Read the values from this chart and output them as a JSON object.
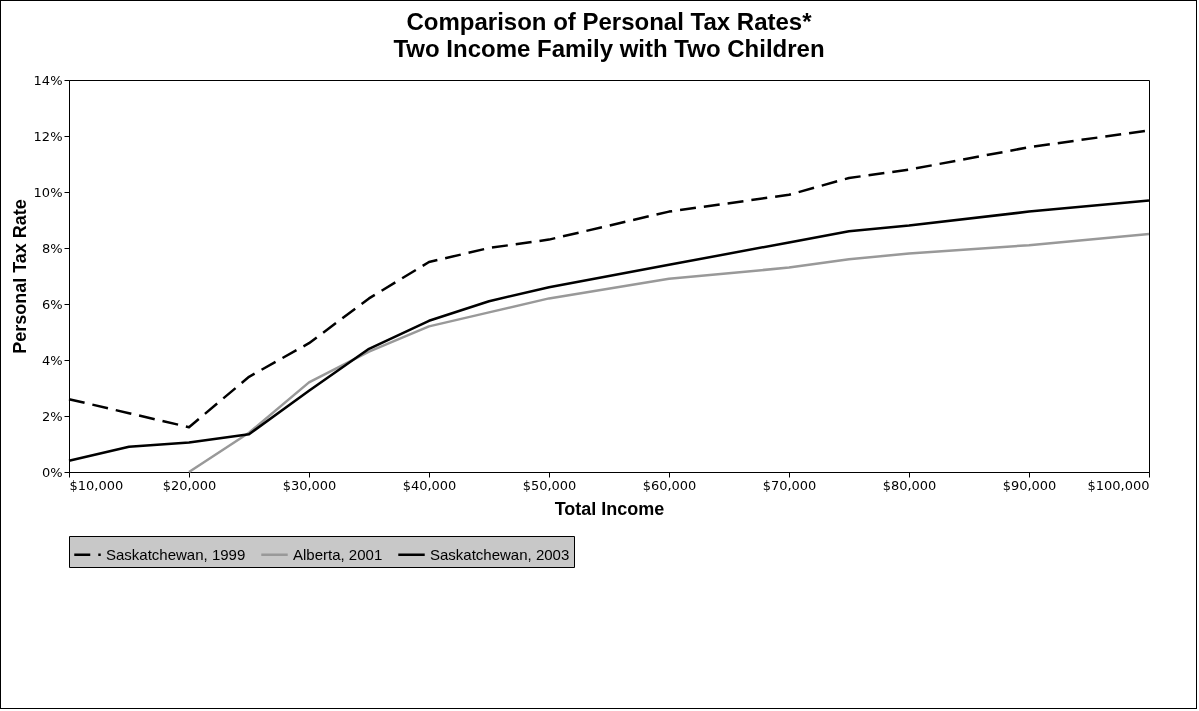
{
  "chart_data": {
    "type": "line",
    "title": "Comparison of Personal Tax Rates*",
    "subtitle": "Two Income Family with Two Children",
    "xlabel": "Total Income",
    "ylabel": "Personal Tax Rate",
    "x": [
      10000,
      15000,
      20000,
      25000,
      30000,
      35000,
      40000,
      45000,
      50000,
      60000,
      70000,
      75000,
      80000,
      90000,
      100000
    ],
    "series": [
      {
        "name": "Saskatchewan, 1999",
        "color": "#000000",
        "line_style": "dashed",
        "values": [
          2.6,
          2.1,
          1.6,
          3.4,
          4.6,
          6.2,
          7.5,
          8.0,
          8.3,
          9.3,
          9.9,
          10.5,
          10.8,
          11.6,
          12.2
        ]
      },
      {
        "name": "Alberta, 2001",
        "color": "#999999",
        "line_style": "solid",
        "values": [
          null,
          null,
          0,
          1.4,
          3.2,
          4.3,
          5.2,
          5.7,
          6.2,
          6.9,
          7.3,
          7.6,
          7.8,
          8.1,
          8.5
        ]
      },
      {
        "name": "Saskatchewan, 2003",
        "color": "#000000",
        "line_style": "solid",
        "values": [
          0.4,
          0.9,
          1.05,
          1.35,
          2.9,
          4.4,
          5.4,
          6.1,
          6.6,
          7.4,
          8.2,
          8.6,
          8.8,
          9.3,
          9.7
        ]
      }
    ],
    "xlim": [
      10000,
      100000
    ],
    "xticks": [
      {
        "value": 10000,
        "label": "$10,000"
      },
      {
        "value": 20000,
        "label": "$20,000"
      },
      {
        "value": 30000,
        "label": "$30,000"
      },
      {
        "value": 40000,
        "label": "$40,000"
      },
      {
        "value": 50000,
        "label": "$50,000"
      },
      {
        "value": 60000,
        "label": "$60,000"
      },
      {
        "value": 70000,
        "label": "$70,000"
      },
      {
        "value": 80000,
        "label": "$80,000"
      },
      {
        "value": 90000,
        "label": "$90,000"
      },
      {
        "value": 100000,
        "label": "$100,000"
      }
    ],
    "ylim": [
      0,
      14
    ],
    "yticks": [
      {
        "value": 0,
        "label": "0%"
      },
      {
        "value": 2,
        "label": "2%"
      },
      {
        "value": 4,
        "label": "4%"
      },
      {
        "value": 6,
        "label": "6%"
      },
      {
        "value": 8,
        "label": "8%"
      },
      {
        "value": 10,
        "label": "10%"
      },
      {
        "value": 12,
        "label": "12%"
      },
      {
        "value": 14,
        "label": "14%"
      }
    ],
    "grid": false,
    "legend": "bottom",
    "marker": "none"
  }
}
